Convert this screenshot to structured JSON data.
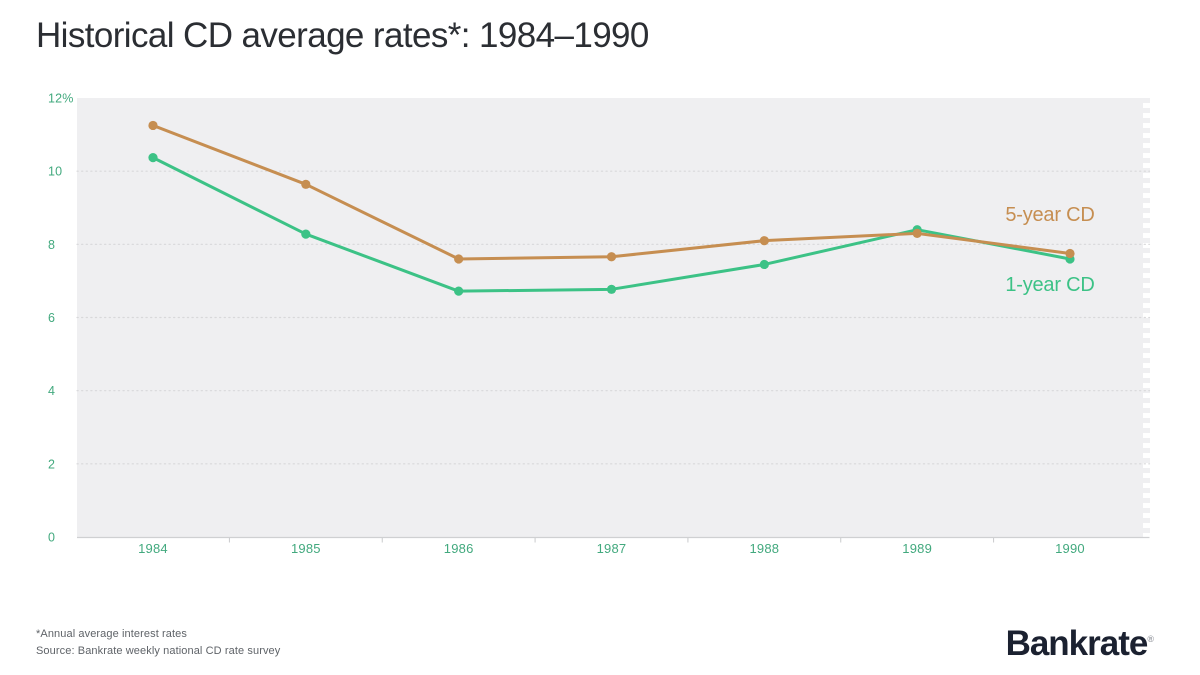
{
  "title": "Historical CD average rates*: 1984–1990",
  "chart_data": {
    "type": "line",
    "categories": [
      "1984",
      "1985",
      "1986",
      "1987",
      "1988",
      "1989",
      "1990"
    ],
    "series": [
      {
        "name": "5-year CD",
        "color": "#c68e51",
        "values": [
          11.25,
          9.64,
          7.6,
          7.66,
          8.1,
          8.3,
          7.75
        ]
      },
      {
        "name": "1-year CD",
        "color": "#3cc286",
        "values": [
          10.37,
          8.28,
          6.72,
          6.77,
          7.45,
          8.4,
          7.6
        ]
      }
    ],
    "title": "Historical CD average rates*: 1984–1990",
    "xlabel": "",
    "ylabel": "",
    "ylim": [
      0,
      12
    ],
    "ytick_interval": 2,
    "ytick_labels": [
      "0",
      "2",
      "4",
      "6",
      "8",
      "10",
      "12%"
    ],
    "grid": "dotted-horizontal",
    "legend_position": "inline-right-of-line-ends",
    "plot_bg": "#efeff1",
    "gridline_color": "#d8d8da",
    "axis_line_color": "#cfd0d2",
    "axis_label_color": "#42a97e"
  },
  "footnotes": {
    "line1": "*Annual average interest rates",
    "line2": "Source: Bankrate weekly national CD rate survey"
  },
  "logo": {
    "text": "Bankrate",
    "mark": "®"
  }
}
